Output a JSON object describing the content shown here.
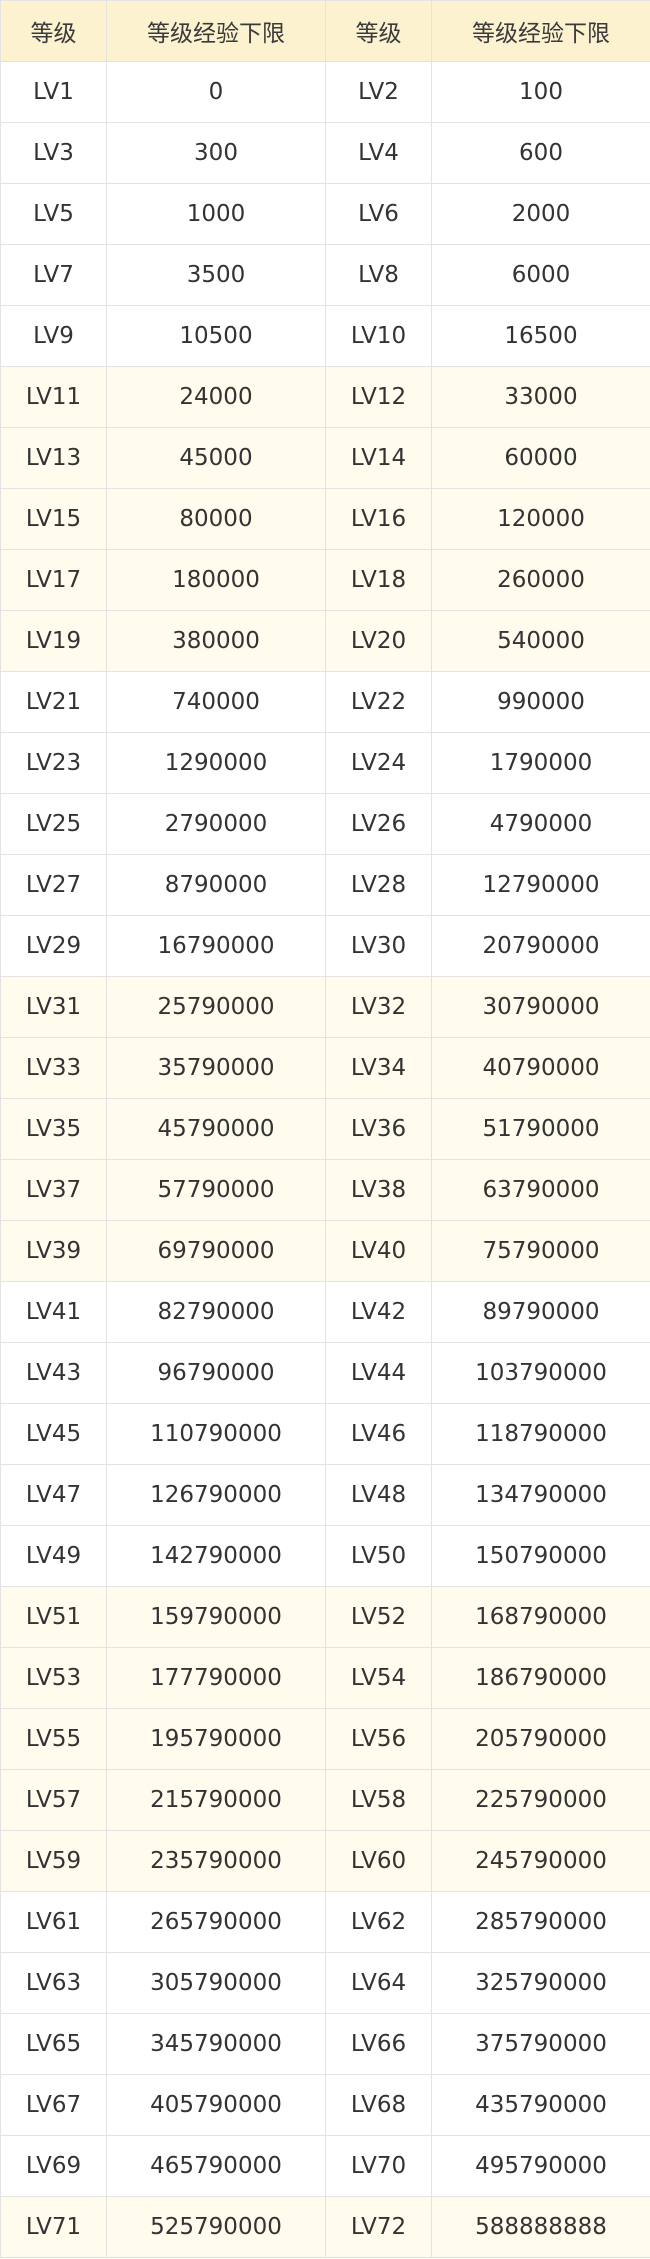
{
  "table": {
    "headers": [
      "等级",
      "等级经验下限",
      "等级",
      "等级经验下限"
    ],
    "rows": [
      [
        "LV1",
        "0",
        "LV2",
        "100"
      ],
      [
        "LV3",
        "300",
        "LV4",
        "600"
      ],
      [
        "LV5",
        "1000",
        "LV6",
        "2000"
      ],
      [
        "LV7",
        "3500",
        "LV8",
        "6000"
      ],
      [
        "LV9",
        "10500",
        "LV10",
        "16500"
      ],
      [
        "LV11",
        "24000",
        "LV12",
        "33000"
      ],
      [
        "LV13",
        "45000",
        "LV14",
        "60000"
      ],
      [
        "LV15",
        "80000",
        "LV16",
        "120000"
      ],
      [
        "LV17",
        "180000",
        "LV18",
        "260000"
      ],
      [
        "LV19",
        "380000",
        "LV20",
        "540000"
      ],
      [
        "LV21",
        "740000",
        "LV22",
        "990000"
      ],
      [
        "LV23",
        "1290000",
        "LV24",
        "1790000"
      ],
      [
        "LV25",
        "2790000",
        "LV26",
        "4790000"
      ],
      [
        "LV27",
        "8790000",
        "LV28",
        "12790000"
      ],
      [
        "LV29",
        "16790000",
        "LV30",
        "20790000"
      ],
      [
        "LV31",
        "25790000",
        "LV32",
        "30790000"
      ],
      [
        "LV33",
        "35790000",
        "LV34",
        "40790000"
      ],
      [
        "LV35",
        "45790000",
        "LV36",
        "51790000"
      ],
      [
        "LV37",
        "57790000",
        "LV38",
        "63790000"
      ],
      [
        "LV39",
        "69790000",
        "LV40",
        "75790000"
      ],
      [
        "LV41",
        "82790000",
        "LV42",
        "89790000"
      ],
      [
        "LV43",
        "96790000",
        "LV44",
        "103790000"
      ],
      [
        "LV45",
        "110790000",
        "LV46",
        "118790000"
      ],
      [
        "LV47",
        "126790000",
        "LV48",
        "134790000"
      ],
      [
        "LV49",
        "142790000",
        "LV50",
        "150790000"
      ],
      [
        "LV51",
        "159790000",
        "LV52",
        "168790000"
      ],
      [
        "LV53",
        "177790000",
        "LV54",
        "186790000"
      ],
      [
        "LV55",
        "195790000",
        "LV56",
        "205790000"
      ],
      [
        "LV57",
        "215790000",
        "LV58",
        "225790000"
      ],
      [
        "LV59",
        "235790000",
        "LV60",
        "245790000"
      ],
      [
        "LV61",
        "265790000",
        "LV62",
        "285790000"
      ],
      [
        "LV63",
        "305790000",
        "LV64",
        "325790000"
      ],
      [
        "LV65",
        "345790000",
        "LV66",
        "375790000"
      ],
      [
        "LV67",
        "405790000",
        "LV68",
        "435790000"
      ],
      [
        "LV69",
        "465790000",
        "LV70",
        "495790000"
      ],
      [
        "LV71",
        "525790000",
        "LV72",
        "588888888"
      ]
    ]
  },
  "colors": {
    "header_background": "#fdf2cf",
    "band_white": "#ffffff",
    "band_cream": "#fffcee",
    "grid_line": "#e3e3e3",
    "text": "#333333"
  }
}
